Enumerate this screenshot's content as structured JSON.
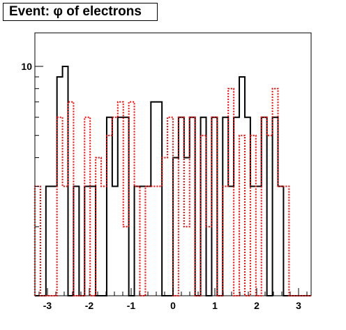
{
  "chart_data": {
    "type": "histogram",
    "title": "Event: φ of electrons",
    "xlabel": "",
    "ylabel": "",
    "xlim": [
      -3.3,
      3.3
    ],
    "ylim": [
      1,
      14
    ],
    "y_scale": "log",
    "x_ticks": [
      -3,
      -2,
      -1,
      0,
      1,
      2,
      3
    ],
    "x_tick_labels": [
      "-3",
      "-2",
      "-1",
      "0",
      "1",
      "2",
      "3"
    ],
    "y_ticks": [
      10
    ],
    "y_tick_labels": [
      "10"
    ],
    "bins": [
      -3.3,
      -3.168,
      -3.036,
      -2.904,
      -2.772,
      -2.64,
      -2.508,
      -2.376,
      -2.244,
      -2.112,
      -1.98,
      -1.848,
      -1.716,
      -1.584,
      -1.452,
      -1.32,
      -1.188,
      -1.056,
      -0.924,
      -0.792,
      -0.66,
      -0.528,
      -0.396,
      -0.264,
      -0.132,
      0.0,
      0.132,
      0.264,
      0.396,
      0.528,
      0.66,
      0.792,
      0.924,
      1.056,
      1.188,
      1.32,
      1.452,
      1.584,
      1.716,
      1.848,
      1.98,
      2.112,
      2.244,
      2.376,
      2.508,
      2.64,
      2.772,
      2.904,
      3.036,
      3.168,
      3.3
    ],
    "series": [
      {
        "color": "#000000",
        "style": "solid",
        "values": [
          1,
          1,
          3,
          3,
          9,
          10,
          1,
          3,
          1,
          3,
          3,
          1,
          1,
          6,
          3,
          6,
          6,
          1,
          3,
          3,
          3,
          7,
          7,
          1,
          1,
          4,
          6,
          4,
          6,
          1,
          6,
          1,
          6,
          1,
          6,
          3,
          6,
          9,
          6,
          3,
          3,
          6,
          1,
          6,
          3,
          1,
          1,
          1,
          1,
          1
        ]
      },
      {
        "color": "#ff0000",
        "style": "dashed",
        "values": [
          3,
          1,
          1,
          1,
          6,
          3,
          7,
          1,
          1,
          6,
          1,
          4,
          3,
          5,
          6,
          7,
          2,
          7,
          3,
          1,
          3,
          3,
          3,
          4,
          6,
          1,
          6,
          2,
          6,
          1,
          5,
          2,
          6,
          1,
          3,
          8,
          1,
          5,
          1,
          5,
          1,
          6,
          5,
          8,
          3,
          3,
          1,
          1,
          1,
          1
        ]
      }
    ]
  }
}
